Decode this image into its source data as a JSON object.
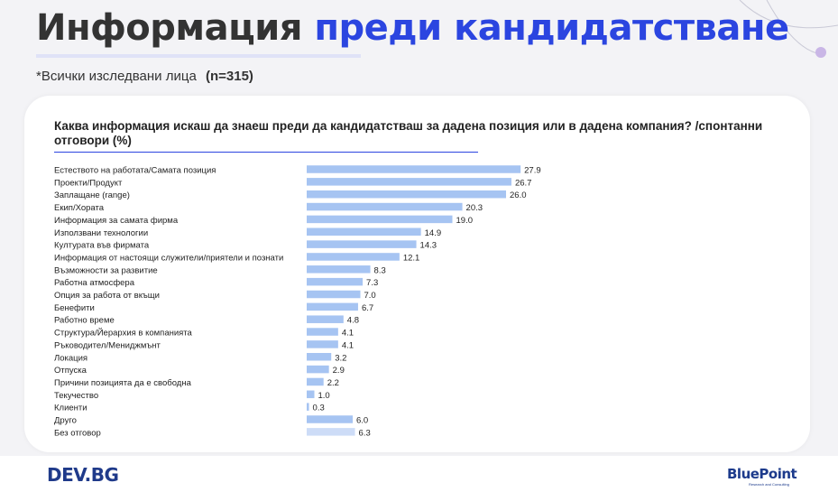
{
  "header": {
    "title_part1": "Информация",
    "title_part2": "преди кандидатстване",
    "subtitle": "*Всички изследвани лица",
    "sample": "(n=315)"
  },
  "question": "Каква информация искаш да знаеш преди да кандидатстваш за дадена позиция или в дадена компания? /спонтанни отговори (%)",
  "footer": {
    "left_logo": "DEV.BG",
    "right_logo": "BluePoint",
    "right_logo_tagline": "Research and Consulting"
  },
  "colors": {
    "accent": "#2b45e0",
    "bar": "#a6c4f2",
    "bar_last": "#cddcf7",
    "title_dark": "#333333"
  },
  "chart_data": {
    "type": "bar",
    "orientation": "horizontal",
    "categories": [
      "Естеството на работата/Самата позиция",
      "Проекти/Продукт",
      "Заплащане (range)",
      "Екип/Хората",
      "Информация за самата фирма",
      "Използвани технологии",
      "Културата във фирмата",
      "Информация от настоящи служители/приятели и познати",
      "Възможности за развитие",
      "Работна атмосфера",
      "Опция за работа от вкъщи",
      "Бенефити",
      "Работно време",
      "Структура/Йерархия в компанията",
      "Ръководител/Мениджмънт",
      "Локация",
      "Отпуска",
      "Причини позицията да е свободна",
      "Текучество",
      "Клиенти",
      "Друго",
      "Без отговор"
    ],
    "values": [
      27.9,
      26.7,
      26.0,
      20.3,
      19.0,
      14.9,
      14.3,
      12.1,
      8.3,
      7.3,
      7.0,
      6.7,
      4.8,
      4.1,
      4.1,
      3.2,
      2.9,
      2.2,
      1.0,
      0.3,
      6.0,
      6.3
    ],
    "value_labels": [
      "27.9",
      "26.7",
      "26.0",
      "20.3",
      "19.0",
      "14.9",
      "14.3",
      "12.1",
      "8.3",
      "7.3",
      "7.0",
      "6.7",
      "4.8",
      "4.1",
      "4.1",
      "3.2",
      "2.9",
      "2.2",
      "1.0",
      "0.3",
      "6.0",
      "6.3"
    ],
    "title": "Каква информация искаш да знаеш преди да кандидатстваш за дадена позиция или в дадена компания? /спонтанни отговори (%)",
    "xlim": [
      0,
      30
    ],
    "grid": false,
    "legend": "none"
  }
}
